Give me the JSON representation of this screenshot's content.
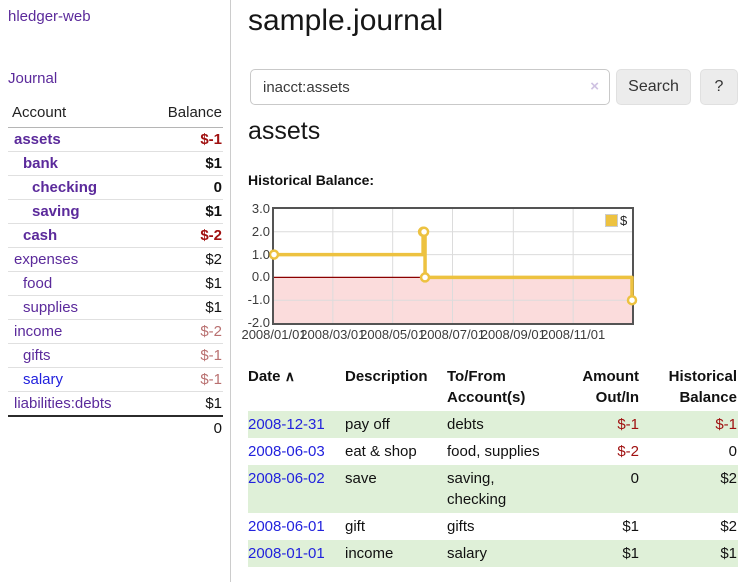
{
  "sidebar": {
    "brand": "hledger-web",
    "nav": {
      "journal": "Journal"
    },
    "accounts_table": {
      "headers": {
        "account": "Account",
        "balance": "Balance"
      },
      "rows": [
        {
          "name": "assets",
          "indent": 0,
          "bold": true,
          "balance": "$-1",
          "balance_style": "neg-strong"
        },
        {
          "name": "bank",
          "indent": 1,
          "bold": true,
          "balance": "$1",
          "balance_style": "pos"
        },
        {
          "name": "checking",
          "indent": 2,
          "bold": true,
          "balance": "0",
          "balance_style": "pos"
        },
        {
          "name": "saving",
          "indent": 2,
          "bold": true,
          "balance": "$1",
          "balance_style": "pos"
        },
        {
          "name": "cash",
          "indent": 1,
          "bold": true,
          "balance": "$-2",
          "balance_style": "neg-strong"
        },
        {
          "name": "expenses",
          "indent": 0,
          "bold": false,
          "balance": "$2",
          "balance_style": "pos"
        },
        {
          "name": "food",
          "indent": 1,
          "bold": false,
          "balance": "$1",
          "balance_style": "pos"
        },
        {
          "name": "supplies",
          "indent": 1,
          "bold": false,
          "balance": "$1",
          "balance_style": "pos"
        },
        {
          "name": "income",
          "indent": 0,
          "bold": false,
          "balance": "$-2",
          "balance_style": "neg-muted"
        },
        {
          "name": "gifts",
          "indent": 1,
          "bold": false,
          "balance": "$-1",
          "balance_style": "neg-muted"
        },
        {
          "name": "salary",
          "indent": 1,
          "bold": false,
          "link_color": "blue",
          "balance": "$-1",
          "balance_style": "neg-muted"
        },
        {
          "name": "liabilities:debts",
          "indent": 0,
          "bold": false,
          "balance": "$1",
          "balance_style": "pos"
        }
      ],
      "total": "0"
    }
  },
  "main": {
    "title": "sample.journal",
    "search": {
      "value": "inacct:assets",
      "clear_icon": "×",
      "button_label": "Search",
      "help_label": "?"
    },
    "account_heading": "assets",
    "chart_label": "Historical Balance:"
  },
  "chart_data": {
    "type": "line",
    "style": "step",
    "title": "Historical Balance",
    "series": [
      {
        "name": "$",
        "color": "#edc240",
        "points": [
          {
            "date": "2008-01-01",
            "day": 0,
            "value": 1
          },
          {
            "date": "2008-06-01",
            "day": 152,
            "value": 2
          },
          {
            "date": "2008-06-02",
            "day": 153,
            "value": 2
          },
          {
            "date": "2008-06-03",
            "day": 154,
            "value": 0
          },
          {
            "date": "2008-12-31",
            "day": 365,
            "value": -1
          }
        ]
      }
    ],
    "x_range_days": [
      0,
      365
    ],
    "ylim": [
      -2,
      3
    ],
    "y_ticks": [
      {
        "label": "3.0",
        "value": 3
      },
      {
        "label": "2.0",
        "value": 2
      },
      {
        "label": "1.0",
        "value": 1
      },
      {
        "label": "0.0",
        "value": 0
      },
      {
        "label": "-1.0",
        "value": -1
      },
      {
        "label": "-2.0",
        "value": -2
      }
    ],
    "x_ticks": [
      {
        "label": "2008/01/01",
        "day": 0
      },
      {
        "label": "2008/03/01",
        "day": 60
      },
      {
        "label": "2008/05/01",
        "day": 121
      },
      {
        "label": "2008/07/01",
        "day": 182
      },
      {
        "label": "2008/09/01",
        "day": 244
      },
      {
        "label": "2008/11/01",
        "day": 305
      }
    ],
    "legend": {
      "label": "$",
      "position": "top-right",
      "swatch_color": "#edc240"
    },
    "grid": true,
    "gridline_color": "#dcdcdc",
    "negative_region_color": "#fbdcdc",
    "zero_line_color": "#8b0000",
    "border_color": "#545454"
  },
  "register_table": {
    "headers": {
      "date": "Date",
      "sort_caret": "∧",
      "description": "Description",
      "accounts": "To/From Account(s)",
      "amount": "Amount Out/In",
      "balance": "Historical Balance"
    },
    "rows": [
      {
        "date": "2008-12-31",
        "description": "pay off",
        "accounts": "debts",
        "amount": "$-1",
        "amount_neg": true,
        "balance": "$-1",
        "balance_neg": true,
        "shade": true
      },
      {
        "date": "2008-06-03",
        "description": "eat & shop",
        "accounts": "food, supplies",
        "amount": "$-2",
        "amount_neg": true,
        "balance": "0",
        "balance_neg": false,
        "shade": false
      },
      {
        "date": "2008-06-02",
        "description": "save",
        "accounts": "saving, checking",
        "amount": "0",
        "amount_neg": false,
        "balance": "$2",
        "balance_neg": false,
        "shade": true
      },
      {
        "date": "2008-06-01",
        "description": "gift",
        "accounts": "gifts",
        "amount": "$1",
        "amount_neg": false,
        "balance": "$2",
        "balance_neg": false,
        "shade": false
      },
      {
        "date": "2008-01-01",
        "description": "income",
        "accounts": "salary",
        "amount": "$1",
        "amount_neg": false,
        "balance": "$1",
        "balance_neg": false,
        "shade": true
      }
    ]
  },
  "colors": {
    "link_purple": "#5b2a9b",
    "link_blue": "#2222dd",
    "negative_strong": "#a01010",
    "negative_muted": "#b97070",
    "row_stripe_green": "#dff0d8",
    "series_gold": "#edc240"
  }
}
